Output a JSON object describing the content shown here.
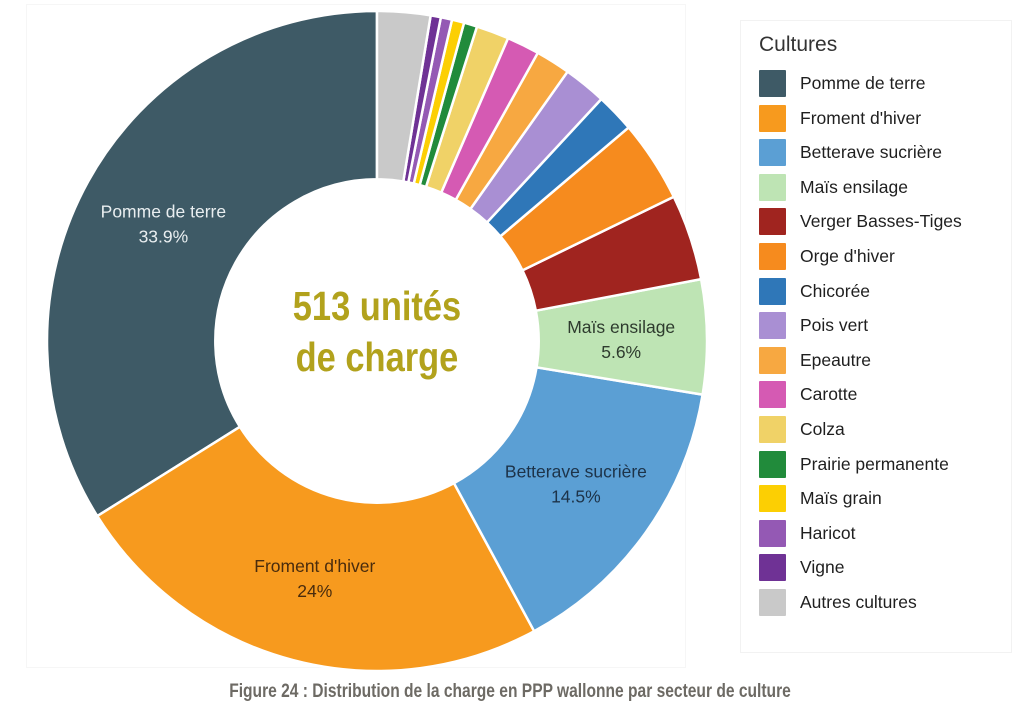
{
  "figure": {
    "caption": "Figure 24 : Distribution de la charge en PPP wallonne par secteur de culture"
  },
  "legend": {
    "title": "Cultures"
  },
  "chart_data": {
    "type": "pie",
    "subtype": "donut",
    "title": "",
    "center_label": {
      "line1": "513 unités",
      "line2": "de charge",
      "color": "#b2a21c"
    },
    "total_label": "513 unités de charge",
    "start_angle": "top",
    "direction": "counterclockwise",
    "inner_radius_ratio": 0.49,
    "legend_position": "right",
    "slices": [
      {
        "label": "Pomme de terre",
        "value_pct": 33.9,
        "display_pct": "33.9%",
        "color": "#3e5a66",
        "labeled": true,
        "label_color": "#e9eef0"
      },
      {
        "label": "Froment d'hiver",
        "value_pct": 24.0,
        "display_pct": "24%",
        "color": "#f79a1e",
        "labeled": true,
        "label_color": "#4a2c0d"
      },
      {
        "label": "Betterave sucrière",
        "value_pct": 14.5,
        "display_pct": "14.5%",
        "color": "#5b9fd4",
        "labeled": true,
        "label_color": "#1d3349"
      },
      {
        "label": "Maïs ensilage",
        "value_pct": 5.6,
        "display_pct": "5.6%",
        "color": "#bee4b4",
        "labeled": true,
        "label_color": "#2e3b2e"
      },
      {
        "label": "Verger Basses-Tiges",
        "value_pct": 4.2,
        "color": "#a0241f",
        "labeled": false
      },
      {
        "label": "Orge d'hiver",
        "value_pct": 4.0,
        "color": "#f68b1e",
        "labeled": false
      },
      {
        "label": "Chicorée",
        "value_pct": 1.9,
        "color": "#2f77b8",
        "labeled": false
      },
      {
        "label": "Pois vert",
        "value_pct": 2.1,
        "color": "#a98fd3",
        "labeled": false
      },
      {
        "label": "Epeautre",
        "value_pct": 1.7,
        "color": "#f7a841",
        "labeled": false
      },
      {
        "label": "Carotte",
        "value_pct": 1.6,
        "color": "#d55ab3",
        "labeled": false
      },
      {
        "label": "Colza",
        "value_pct": 1.6,
        "color": "#f0d267",
        "labeled": false
      },
      {
        "label": "Prairie permanente",
        "value_pct": 0.65,
        "color": "#218b3b",
        "labeled": false
      },
      {
        "label": "Maïs grain",
        "value_pct": 0.6,
        "color": "#fccf03",
        "labeled": false
      },
      {
        "label": "Haricot",
        "value_pct": 0.55,
        "color": "#9459b4",
        "labeled": false
      },
      {
        "label": "Vigne",
        "value_pct": 0.5,
        "color": "#6f3295",
        "labeled": false
      },
      {
        "label": "Autres cultures",
        "value_pct": 2.6,
        "color": "#c9c9c9",
        "labeled": false
      }
    ]
  }
}
